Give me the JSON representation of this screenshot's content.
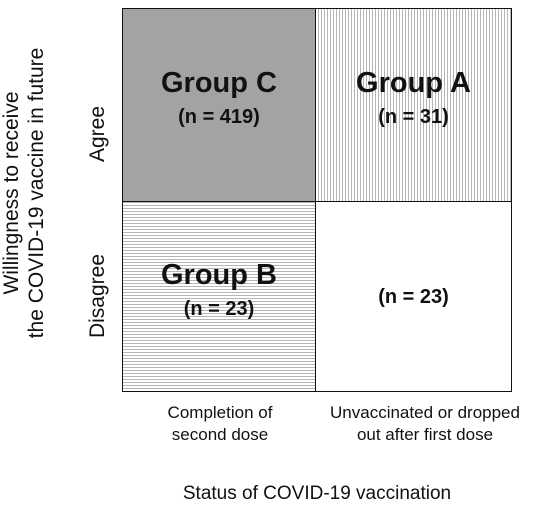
{
  "y_axis": {
    "title_line1": "Willingness to receive",
    "title_line2": "the COVID-19 vaccine in future",
    "rows": [
      "Agree",
      "Disagree"
    ]
  },
  "x_axis": {
    "title": "Status of COVID-19 vaccination",
    "columns": [
      {
        "line1": "Completion of",
        "line2": "second dose"
      },
      {
        "line1": "Unvaccinated or dropped",
        "line2": "out after first dose"
      }
    ]
  },
  "cells": {
    "agree_completed": {
      "group": "Group C",
      "count": "(n = 419)",
      "fill": "#a3a3a3"
    },
    "agree_unvaccinated": {
      "group": "Group A",
      "count": "(n = 31)",
      "fill": "vertical-hatch"
    },
    "disagree_completed": {
      "group": "Group B",
      "count": "(n = 23)",
      "fill": "horizontal-hatch"
    },
    "disagree_unvaccinated": {
      "count": "(n = 23)",
      "fill": "#ffffff"
    }
  }
}
